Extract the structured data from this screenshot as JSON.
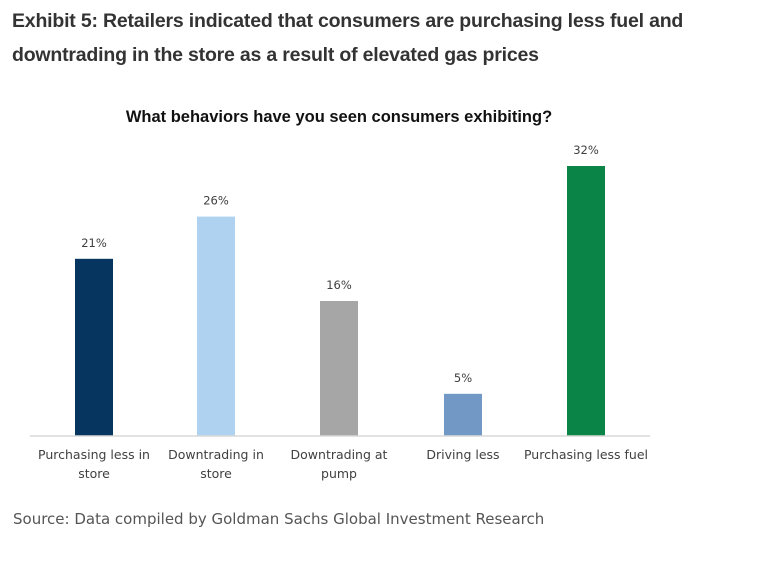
{
  "exhibit": {
    "title": "Exhibit 5: Retailers indicated that consumers are purchasing less fuel and downtrading in the store as a result of elevated gas prices"
  },
  "chart_data": {
    "type": "bar",
    "title": "What behaviors have you seen consumers exhibiting?",
    "xlabel": "",
    "ylabel": "",
    "ylim": [
      0,
      35
    ],
    "grid": false,
    "legend": "none",
    "categories": [
      [
        "Purchasing less in",
        "store"
      ],
      [
        "Downtrading in",
        "store"
      ],
      [
        "Downtrading at",
        "pump"
      ],
      [
        "Driving less"
      ],
      [
        "Purchasing less fuel"
      ]
    ],
    "values": [
      21,
      26,
      16,
      5,
      32
    ],
    "value_labels": [
      "21%",
      "26%",
      "16%",
      "5%",
      "32%"
    ],
    "colors": [
      "#06365f",
      "#aed2f0",
      "#a6a6a6",
      "#7298c6",
      "#0b8447"
    ]
  },
  "source": "Source: Data compiled by Goldman Sachs Global Investment Research"
}
